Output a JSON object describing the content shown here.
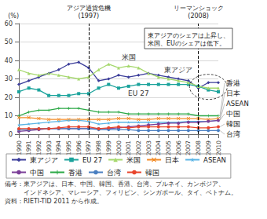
{
  "chart_data": {
    "type": "line",
    "y_label": "(%)",
    "categories": [
      "1990",
      "1991",
      "1992",
      "1993",
      "1994",
      "1995",
      "1996",
      "1997",
      "1998",
      "1999",
      "2000",
      "2001",
      "2002",
      "2003",
      "2004",
      "2005",
      "2006",
      "2007",
      "2008",
      "2009",
      "2010"
    ],
    "ylim": [
      0,
      60
    ],
    "yticks": [
      0,
      10,
      20,
      30,
      40,
      50,
      60
    ],
    "grid": true,
    "legend": "bottom",
    "series": [
      {
        "name": "東アジア",
        "color": "#3b3d9a",
        "marker": "diamond",
        "values": [
          27,
          29,
          31,
          33,
          35,
          38,
          39,
          36,
          29,
          30,
          32,
          31,
          32,
          33,
          32,
          31,
          30,
          29,
          25,
          28,
          28
        ]
      },
      {
        "name": "EU 27",
        "color": "#1ba39c",
        "marker": "square",
        "values": [
          23,
          25,
          24,
          21,
          21,
          21,
          22,
          22,
          25,
          27,
          25,
          26,
          27,
          27,
          27,
          27,
          27,
          27,
          26,
          24,
          23
        ]
      },
      {
        "name": "米国",
        "color": "#a6d86e",
        "marker": "triangle",
        "values": [
          35,
          33,
          32,
          33,
          32,
          31,
          30,
          31,
          35,
          38,
          36,
          37,
          36,
          33,
          31,
          30,
          29,
          28,
          26,
          25,
          25
        ]
      },
      {
        "name": "日本",
        "color": "#f28c28",
        "marker": "x",
        "values": [
          9,
          9,
          8.5,
          8,
          8,
          8,
          8,
          8,
          8,
          8,
          8.5,
          8.5,
          8,
          8,
          8.5,
          8.5,
          8.5,
          8.5,
          8.5,
          8,
          8.5
        ]
      },
      {
        "name": "ASEAN",
        "color": "#5ab4e5",
        "marker": "star",
        "values": [
          5,
          5.5,
          6,
          6.5,
          7,
          7.5,
          7.5,
          7,
          5.5,
          6,
          6.5,
          6.5,
          6.5,
          6.5,
          6.5,
          6.5,
          6.5,
          7,
          7,
          7,
          7.5
        ]
      },
      {
        "name": "中国",
        "color": "#7b3f98",
        "marker": "circle",
        "values": [
          1.5,
          2,
          2.5,
          3,
          3,
          3,
          3,
          3,
          3,
          3,
          3.5,
          4,
          4.5,
          5,
          5.5,
          6,
          6,
          6.5,
          6.5,
          7,
          7.5
        ]
      },
      {
        "name": "香港",
        "color": "#2aa845",
        "marker": "plus",
        "values": [
          10,
          12,
          13,
          13,
          14,
          14,
          14,
          13,
          12,
          12,
          12,
          11,
          11,
          11,
          11,
          11,
          11,
          11,
          10,
          10,
          10
        ]
      },
      {
        "name": "台湾",
        "color": "#4a7fc1",
        "marker": "circle",
        "values": [
          2.5,
          2.5,
          3,
          3,
          3,
          3,
          3,
          3,
          2.5,
          2.5,
          2.5,
          2.5,
          2,
          2,
          2,
          2,
          2,
          2,
          2,
          2,
          2
        ]
      },
      {
        "name": "韓国",
        "color": "#e8452c",
        "marker": "circle",
        "values": [
          3,
          3,
          3,
          3,
          3.5,
          4,
          4,
          4,
          3,
          3.5,
          4,
          3.5,
          4,
          4,
          4,
          4,
          4,
          4,
          3.5,
          3.5,
          4
        ]
      }
    ],
    "annotations": [
      {
        "x": "1997",
        "label": "アジア通貨危機",
        "sub_label": "(1997)"
      },
      {
        "x": "2008",
        "label": "リーマンショック",
        "sub_label": "(2008)"
      }
    ],
    "callout": [
      "東アジアのシェアは上昇し、",
      "米国、EUのシェアは低下。"
    ],
    "notes": [
      "備考：東アジアは、日本、中国、韓国、香港、台湾、ブルネイ、カンボジア、",
      "　　　インドネシア、マレーシア、フィリピン、シンガポール、タイ、ベトナム。",
      "資料：RIETI-TID 2011 から作成。"
    ]
  }
}
